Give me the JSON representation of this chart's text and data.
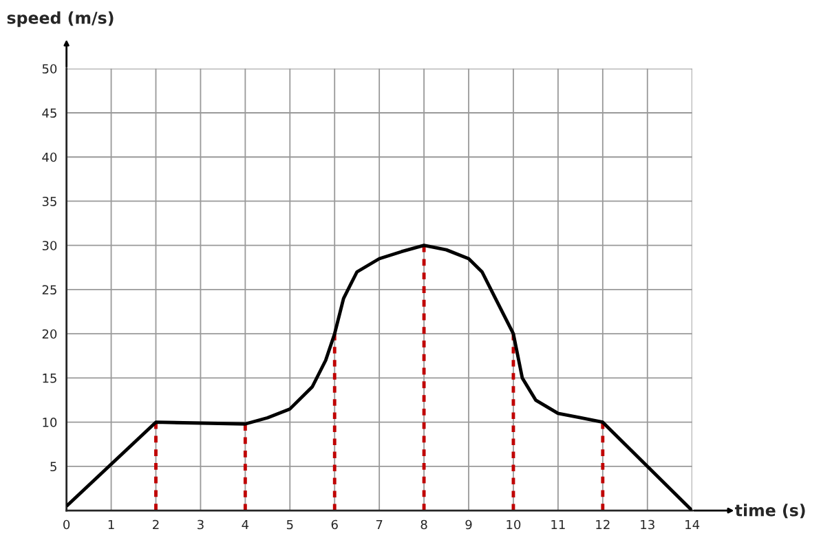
{
  "chart_data": {
    "type": "line",
    "xlabel": "time (s)",
    "ylabel": "speed (m/s)",
    "xlim": [
      0,
      14
    ],
    "ylim": [
      0,
      50
    ],
    "xticks": [
      0,
      1,
      2,
      3,
      4,
      5,
      6,
      7,
      8,
      9,
      10,
      11,
      12,
      13,
      14
    ],
    "yticks": [
      {
        "value": 0,
        "label": null
      },
      5,
      10,
      15,
      20,
      25,
      30,
      35,
      40,
      45,
      50
    ],
    "grid": true,
    "marker": "none",
    "series": [
      {
        "color": "#000000",
        "line_style": "solid",
        "x": [
          0,
          2,
          4,
          4.5,
          5,
          5.5,
          5.8,
          6,
          6.2,
          6.5,
          7,
          7.5,
          8,
          8.5,
          9,
          9.3,
          9.6,
          10,
          10.2,
          10.5,
          11,
          11.5,
          12,
          14
        ],
        "values": [
          0.5,
          10,
          9.8,
          10.5,
          11.5,
          14,
          17,
          20,
          24,
          27,
          28.5,
          29.3,
          30,
          29.5,
          28.5,
          27,
          24,
          20,
          15,
          12.5,
          11,
          10.5,
          10,
          0
        ]
      },
      {
        "color": "#c00000",
        "line_style": "dashed",
        "x": [
          2,
          2
        ],
        "values": [
          0,
          10
        ]
      },
      {
        "color": "#c00000",
        "line_style": "dashed",
        "x": [
          4,
          4
        ],
        "values": [
          0,
          9.8
        ]
      },
      {
        "color": "#c00000",
        "line_style": "dashed",
        "x": [
          6,
          6
        ],
        "values": [
          0,
          20
        ]
      },
      {
        "color": "#c00000",
        "line_style": "dashed",
        "x": [
          8,
          8
        ],
        "values": [
          0,
          30
        ]
      },
      {
        "color": "#c00000",
        "line_style": "dashed",
        "x": [
          10,
          10
        ],
        "values": [
          0,
          20
        ]
      },
      {
        "color": "#c00000",
        "line_style": "dashed",
        "x": [
          12,
          12
        ],
        "values": [
          0,
          10
        ]
      }
    ]
  }
}
